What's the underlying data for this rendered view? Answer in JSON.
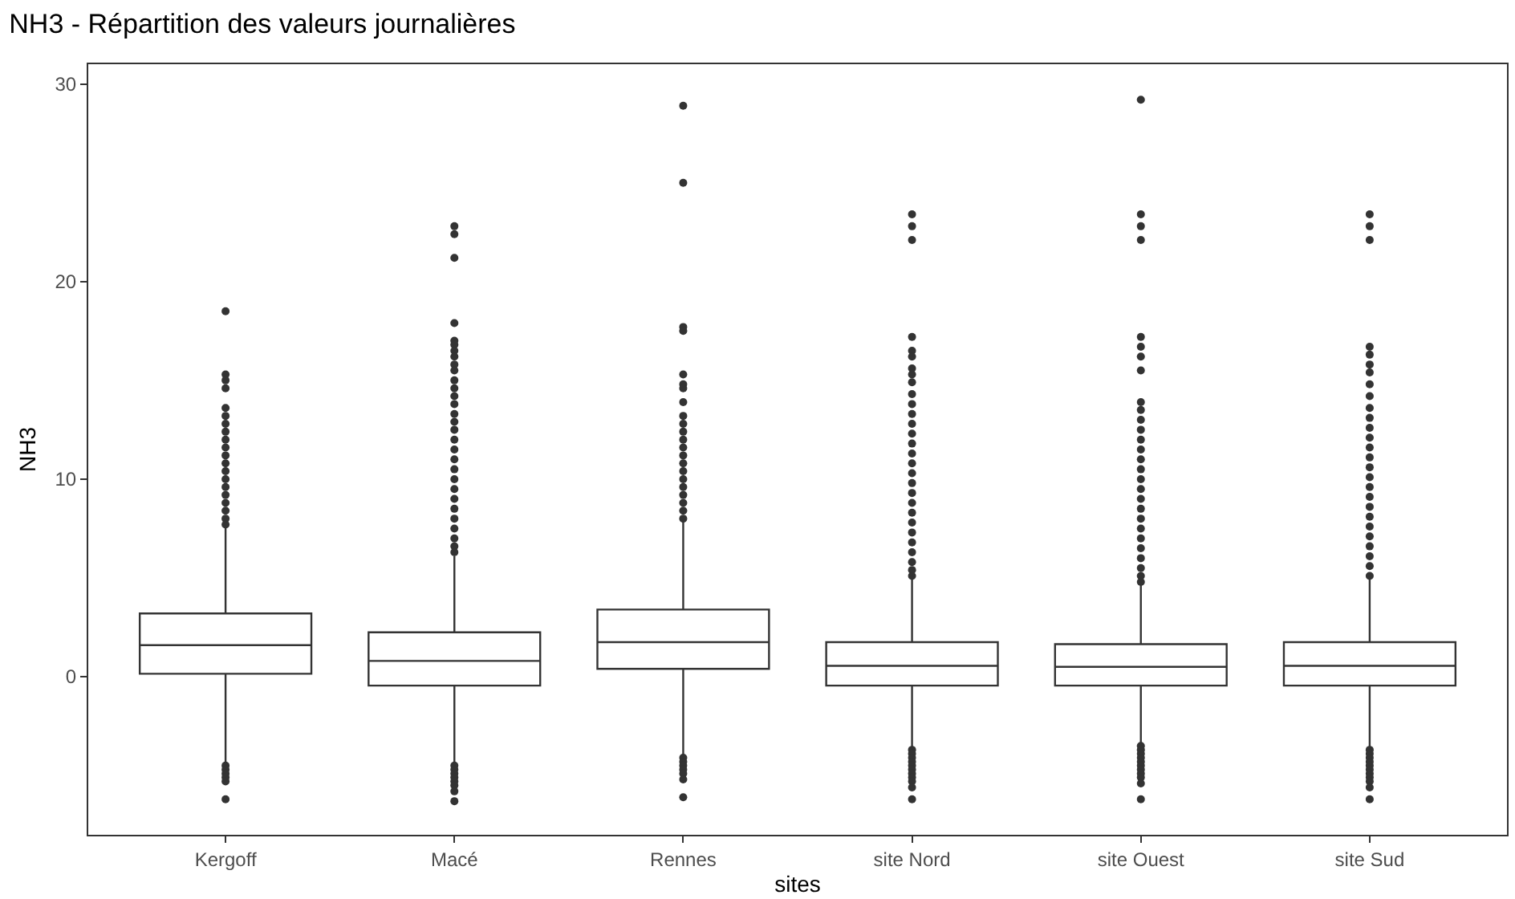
{
  "chart_data": {
    "type": "box",
    "title": "NH3 - Répartition des valeurs journalières",
    "xlabel": "sites",
    "ylabel": "NH3",
    "categories": [
      "Kergoff",
      "Macé",
      "Rennes",
      "site Nord",
      "site Ouest",
      "site Sud"
    ],
    "ylim": [
      -8,
      31
    ],
    "yticks": [
      0,
      10,
      20,
      30
    ],
    "color": "#333333",
    "boxes": [
      {
        "low": -4.4,
        "q1": 0.15,
        "median": 1.6,
        "q3": 3.2,
        "high": 7.6,
        "outliers": [
          18.5,
          15.3,
          15.0,
          14.6,
          13.6,
          13.2,
          12.8,
          12.4,
          12.0,
          11.6,
          11.2,
          10.8,
          10.4,
          10.0,
          9.6,
          9.2,
          8.8,
          8.4,
          8.0,
          7.7,
          -4.5,
          -4.7,
          -4.9,
          -5.1,
          -5.3,
          -6.2
        ]
      },
      {
        "low": -4.4,
        "q1": -0.45,
        "median": 0.8,
        "q3": 2.25,
        "high": 6.1,
        "outliers": [
          22.8,
          22.4,
          21.2,
          17.9,
          17.0,
          16.8,
          16.5,
          16.2,
          15.8,
          15.5,
          15.0,
          14.6,
          14.2,
          13.8,
          13.3,
          12.9,
          12.5,
          12.0,
          11.5,
          11.0,
          10.5,
          10.0,
          9.5,
          9.0,
          8.5,
          8.0,
          7.5,
          7.0,
          6.6,
          6.3,
          -4.5,
          -4.7,
          -4.9,
          -5.1,
          -5.3,
          -5.5,
          -5.8,
          -6.3
        ]
      },
      {
        "low": -4.0,
        "q1": 0.4,
        "median": 1.75,
        "q3": 3.4,
        "high": 7.85,
        "outliers": [
          28.9,
          25.0,
          17.7,
          17.5,
          15.3,
          14.8,
          14.6,
          13.9,
          13.2,
          12.8,
          12.4,
          12.0,
          11.6,
          11.2,
          10.8,
          10.4,
          10.0,
          9.6,
          9.2,
          8.8,
          8.4,
          8.0,
          -4.1,
          -4.3,
          -4.5,
          -4.7,
          -4.9,
          -5.2,
          -6.1
        ]
      },
      {
        "low": -3.6,
        "q1": -0.45,
        "median": 0.55,
        "q3": 1.75,
        "high": 4.95,
        "outliers": [
          23.4,
          22.8,
          22.1,
          17.2,
          16.5,
          16.2,
          15.6,
          15.3,
          14.9,
          14.3,
          13.8,
          13.3,
          12.8,
          12.3,
          11.8,
          11.3,
          10.8,
          10.3,
          9.8,
          9.3,
          8.8,
          8.3,
          7.8,
          7.3,
          6.8,
          6.3,
          5.8,
          5.4,
          5.1,
          -3.7,
          -3.9,
          -4.1,
          -4.3,
          -4.5,
          -4.7,
          -4.9,
          -5.1,
          -5.3,
          -5.6,
          -6.2
        ]
      },
      {
        "low": -3.45,
        "q1": -0.45,
        "median": 0.5,
        "q3": 1.65,
        "high": 4.7,
        "outliers": [
          29.2,
          23.4,
          22.8,
          22.1,
          17.2,
          16.7,
          16.2,
          15.5,
          13.9,
          13.5,
          13.0,
          12.5,
          12.0,
          11.5,
          11.0,
          10.5,
          10.0,
          9.5,
          9.0,
          8.5,
          8.0,
          7.5,
          7.0,
          6.5,
          6.0,
          5.5,
          5.1,
          4.8,
          -3.5,
          -3.7,
          -3.9,
          -4.1,
          -4.3,
          -4.5,
          -4.7,
          -4.9,
          -5.1,
          -5.4,
          -6.2
        ]
      },
      {
        "low": -3.65,
        "q1": -0.45,
        "median": 0.55,
        "q3": 1.75,
        "high": 5.0,
        "outliers": [
          23.4,
          22.8,
          22.1,
          16.7,
          16.3,
          15.8,
          15.4,
          14.8,
          14.2,
          13.6,
          13.1,
          12.6,
          12.1,
          11.6,
          11.1,
          10.6,
          10.1,
          9.6,
          9.1,
          8.6,
          8.1,
          7.6,
          7.1,
          6.6,
          6.1,
          5.6,
          5.1,
          -3.7,
          -3.9,
          -4.1,
          -4.3,
          -4.5,
          -4.7,
          -4.9,
          -5.1,
          -5.3,
          -5.6,
          -6.2
        ]
      }
    ]
  }
}
